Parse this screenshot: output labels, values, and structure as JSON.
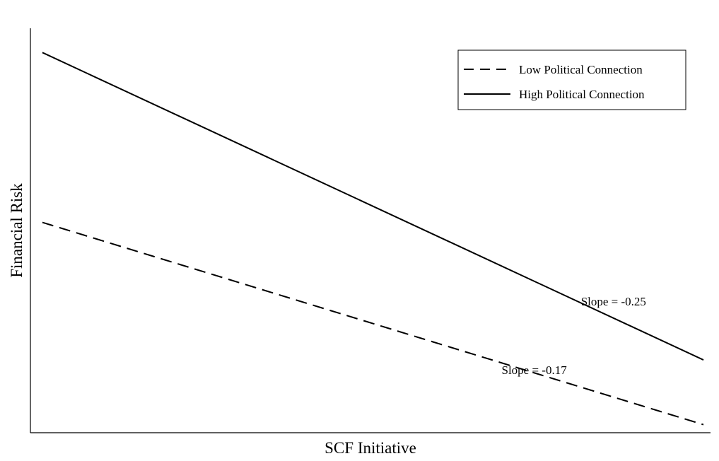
{
  "chart_data": {
    "type": "line",
    "title": "",
    "xlabel": "SCF Initiative",
    "ylabel": "Financial Risk",
    "x": [
      0,
      1
    ],
    "xlim": [
      0,
      1
    ],
    "ylim": [
      0,
      1
    ],
    "grid": false,
    "legend": {
      "position": "top-right"
    },
    "series": [
      {
        "name": "Low Political Connection",
        "style": "dashed",
        "color": "#000000",
        "values": [
          0.52,
          0.02
        ]
      },
      {
        "name": "High Political Connection",
        "style": "solid",
        "color": "#000000",
        "values": [
          0.94,
          0.18
        ]
      }
    ],
    "annotations": [
      {
        "text": "Slope = -0.25",
        "series": 1,
        "at_x": 0.82
      },
      {
        "text": "Slope = -0.17",
        "series": 0,
        "at_x": 0.7
      }
    ]
  }
}
